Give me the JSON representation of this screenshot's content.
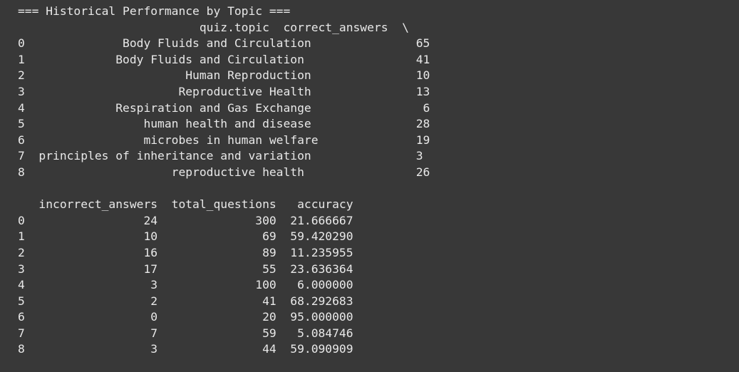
{
  "output": {
    "heading": "=== Historical Performance by Topic ===",
    "table1": {
      "header": "                          quiz.topic  correct_answers  \\",
      "rows": [
        "0              Body Fluids and Circulation               65",
        "1             Body Fluids and Circulation                41",
        "2                       Human Reproduction               10",
        "3                      Reproductive Health               13",
        "4             Respiration and Gas Exchange                6",
        "5                 human health and disease               28",
        "6                 microbes in human welfare              19",
        "7  principles of inheritance and variation               3",
        "8                     reproductive health                26"
      ]
    },
    "table2": {
      "header": "   incorrect_answers  total_questions   accuracy",
      "rows": [
        "0                 24              300  21.666667",
        "1                 10               69  59.420290",
        "2                 16               89  11.235955",
        "3                 17               55  23.636364",
        "4                  3              100   6.000000",
        "5                  2               41  68.292683",
        "6                  0               20  95.000000",
        "7                  7               59   5.084746",
        "8                  3               44  59.090909"
      ]
    }
  }
}
